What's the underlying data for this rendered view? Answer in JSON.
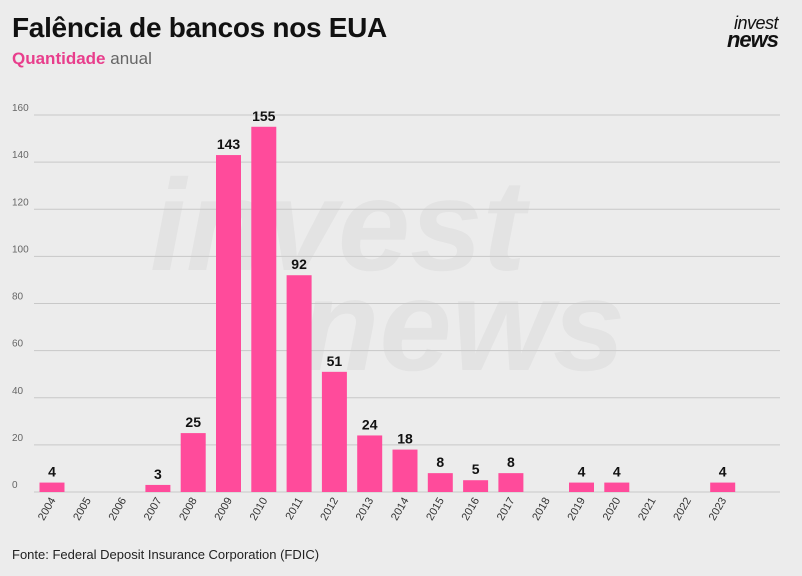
{
  "header": {
    "title": "Falência de bancos nos EUA",
    "subtitle_highlight": "Quantidade",
    "subtitle_rest": "anual"
  },
  "logo": {
    "line1": "invest",
    "line2": "news"
  },
  "footer": {
    "source": "Fonte: Federal Deposit Insurance Corporation (FDIC)"
  },
  "colors": {
    "bar": "#ff4b9b",
    "accent": "#e83e8c",
    "grid": "#c8c8c8",
    "background": "#ececec"
  },
  "chart_data": {
    "type": "bar",
    "title": "Falência de bancos nos EUA",
    "subtitle": "Quantidade anual",
    "xlabel": "",
    "ylabel": "",
    "categories": [
      "2004",
      "2005",
      "2006",
      "2007",
      "2008",
      "2009",
      "2010",
      "2011",
      "2012",
      "2013",
      "2014",
      "2015",
      "2016",
      "2017",
      "2018",
      "2019",
      "2020",
      "2021",
      "2022",
      "2023"
    ],
    "values": [
      4,
      0,
      0,
      3,
      25,
      143,
      155,
      92,
      51,
      24,
      18,
      8,
      5,
      8,
      0,
      4,
      4,
      0,
      0,
      4
    ],
    "data_labels": [
      "4",
      "",
      "",
      "3",
      "25",
      "143",
      "155",
      "92",
      "51",
      "24",
      "18",
      "8",
      "5",
      "8",
      "",
      "4",
      "4",
      "",
      "",
      "4"
    ],
    "yticks": [
      0,
      20,
      40,
      60,
      80,
      100,
      120,
      140,
      160
    ],
    "ylim": [
      0,
      160
    ],
    "grid": true,
    "legend": "none"
  }
}
